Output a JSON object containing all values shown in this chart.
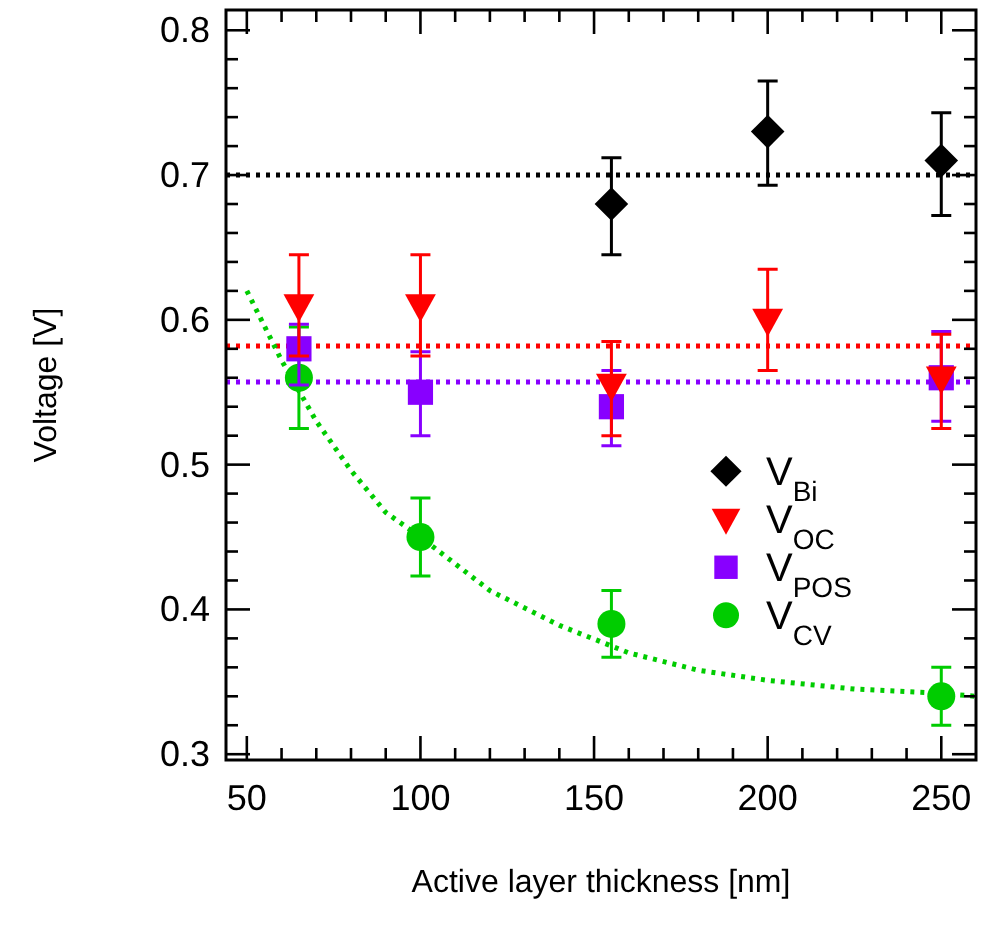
{
  "chart_data": {
    "type": "scatter",
    "xlabel": "Active layer thickness [nm]",
    "ylabel": "Voltage [V]",
    "xlim": [
      44,
      260
    ],
    "ylim": [
      0.296,
      0.814
    ],
    "xticks": [
      50,
      {
        "value": 60,
        "label": null
      },
      {
        "value": 70,
        "label": null
      },
      {
        "value": 80,
        "label": null
      },
      {
        "value": 90,
        "label": null
      },
      100,
      {
        "value": 110,
        "label": null
      },
      {
        "value": 120,
        "label": null
      },
      {
        "value": 130,
        "label": null
      },
      {
        "value": 140,
        "label": null
      },
      150,
      {
        "value": 160,
        "label": null
      },
      {
        "value": 170,
        "label": null
      },
      {
        "value": 180,
        "label": null
      },
      {
        "value": 190,
        "label": null
      },
      200,
      {
        "value": 210,
        "label": null
      },
      {
        "value": 220,
        "label": null
      },
      {
        "value": 230,
        "label": null
      },
      {
        "value": 240,
        "label": null
      },
      250
    ],
    "yticks": [
      0.3,
      {
        "value": 0.32,
        "label": null
      },
      {
        "value": 0.34,
        "label": null
      },
      {
        "value": 0.36,
        "label": null
      },
      {
        "value": 0.38,
        "label": null
      },
      0.4,
      {
        "value": 0.42,
        "label": null
      },
      {
        "value": 0.44,
        "label": null
      },
      {
        "value": 0.46,
        "label": null
      },
      {
        "value": 0.48,
        "label": null
      },
      0.5,
      {
        "value": 0.52,
        "label": null
      },
      {
        "value": 0.54,
        "label": null
      },
      {
        "value": 0.56,
        "label": null
      },
      {
        "value": 0.58,
        "label": null
      },
      0.6,
      {
        "value": 0.62,
        "label": null
      },
      {
        "value": 0.64,
        "label": null
      },
      {
        "value": 0.66,
        "label": null
      },
      {
        "value": 0.68,
        "label": null
      },
      0.7,
      {
        "value": 0.72,
        "label": null
      },
      {
        "value": 0.74,
        "label": null
      },
      {
        "value": 0.76,
        "label": null
      },
      {
        "value": 0.78,
        "label": null
      },
      0.8
    ],
    "grid": false,
    "legend": "right",
    "ref_lines": [
      {
        "axis": "y",
        "value": 0.7,
        "color": "#000000",
        "line_style": "dotted"
      },
      {
        "axis": "y",
        "value": 0.582,
        "color": "#ff0000",
        "line_style": "dotted"
      },
      {
        "axis": "y",
        "value": 0.557,
        "color": "#8800ff",
        "line_style": "dotted"
      }
    ],
    "series": [
      {
        "name": "V$_{Bi}$",
        "color": "#000000",
        "marker": "diamond",
        "x": [
          155,
          200,
          250
        ],
        "values": [
          0.68,
          0.73,
          0.71
        ],
        "errors": [
          [
            0.645,
            0.712
          ],
          [
            0.693,
            0.765
          ],
          [
            0.672,
            0.743
          ]
        ]
      },
      {
        "name": "V$_{OC}$",
        "color": "#ff0000",
        "marker": "triangle",
        "x": [
          65,
          100,
          155,
          200,
          250
        ],
        "values": [
          0.61,
          0.61,
          0.555,
          0.6,
          0.56
        ],
        "errors": [
          [
            0.575,
            0.645
          ],
          [
            0.575,
            0.645
          ],
          [
            0.52,
            0.585
          ],
          [
            0.565,
            0.635
          ],
          [
            0.525,
            0.59
          ]
        ]
      },
      {
        "name": "V$_{POS}$",
        "color": "#8800ff",
        "marker": "square",
        "x": [
          65,
          100,
          155,
          250
        ],
        "values": [
          0.58,
          0.55,
          0.54,
          0.56
        ],
        "errors": [
          [
            0.555,
            0.597
          ],
          [
            0.52,
            0.578
          ],
          [
            0.513,
            0.565
          ],
          [
            0.53,
            0.592
          ]
        ]
      },
      {
        "name": "V$_{CV}$",
        "color": "#00cc00",
        "marker": "circle",
        "x": [
          65,
          100,
          155,
          250
        ],
        "values": [
          0.56,
          0.45,
          0.39,
          0.34
        ],
        "errors": [
          [
            0.525,
            0.595
          ],
          [
            0.423,
            0.477
          ],
          [
            0.367,
            0.413
          ],
          [
            0.32,
            0.36
          ]
        ]
      },
      {
        "type": "line",
        "color": "#00cc00",
        "marker": "none",
        "line_style": "dotted",
        "x": [
          50,
          60,
          70,
          80,
          90,
          100,
          120,
          140,
          160,
          180,
          200,
          225,
          250,
          260
        ],
        "values": [
          0.62,
          0.572,
          0.53,
          0.496,
          0.467,
          0.45,
          0.413,
          0.389,
          0.37,
          0.358,
          0.351,
          0.345,
          0.342,
          0.34
        ]
      }
    ]
  }
}
